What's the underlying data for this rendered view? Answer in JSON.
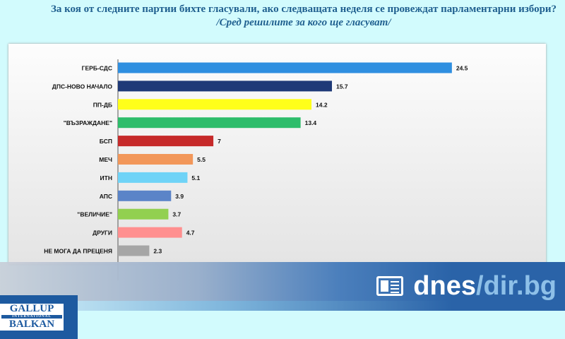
{
  "header": {
    "title": "За коя от следните партии бихте  гласували,  ако следващата неделя се провеждат парламентарни избори?",
    "subtitle": "/Сред решилите за кого ще гласуват/"
  },
  "chart_data": {
    "type": "bar",
    "orientation": "horizontal",
    "categories": [
      "ГЕРБ-СДС",
      "ДПС-НОВО НАЧАЛО",
      "ПП-ДБ",
      "\"ВЪЗРАЖДАНЕ\"",
      "БСП",
      "МЕЧ",
      "ИТН",
      "АПС",
      "\"ВЕЛИЧИЕ\"",
      "ДРУГИ",
      "НЕ МОГА ДА ПРЕЦЕНЯ"
    ],
    "values": [
      24.5,
      15.7,
      14.2,
      13.4,
      7,
      5.5,
      5.1,
      3.9,
      3.7,
      4.7,
      2.3
    ],
    "colors": [
      "#2f8fe0",
      "#1f3a78",
      "#ffff1a",
      "#2ebd6b",
      "#c62a2a",
      "#f2975a",
      "#6fd3f7",
      "#5b84c8",
      "#92d050",
      "#ff8f8f",
      "#a6a6a6"
    ],
    "xlim": [
      0,
      25
    ],
    "grid": false,
    "legend": "none"
  },
  "branding": {
    "site_left": "dnes",
    "site_sep": "/",
    "site_right": "dir.bg",
    "logo_top": "GALLUP",
    "logo_mid": "INTERNATIONAL",
    "logo_bottom": "BALKAN"
  }
}
